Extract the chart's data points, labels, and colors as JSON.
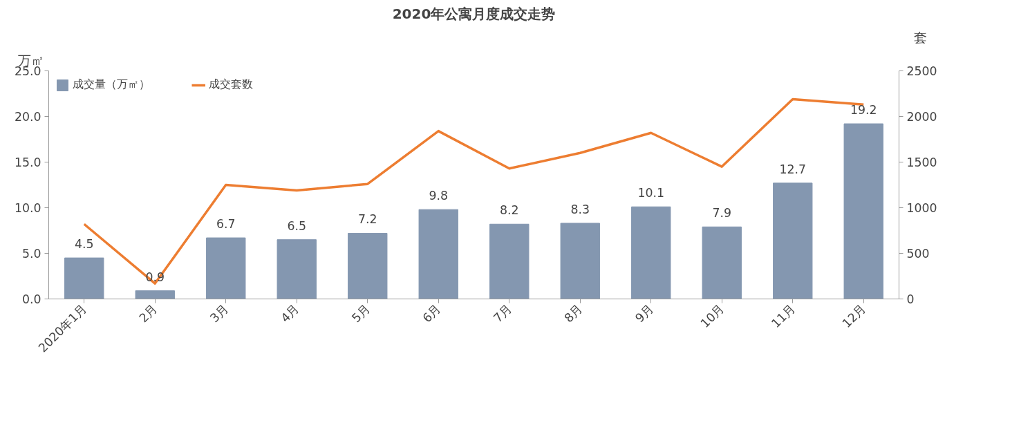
{
  "chart_data": {
    "type": "bar",
    "title": "2020年公寓月度成交走势",
    "ylabel": "万㎡",
    "y2label": "套",
    "categories": [
      "2020年1月",
      "2月",
      "3月",
      "4月",
      "5月",
      "6月",
      "7月",
      "8月",
      "9月",
      "10月",
      "11月",
      "12月"
    ],
    "series": [
      {
        "name": "成交量（万㎡）",
        "color": "#8497b0",
        "values": [
          4.5,
          0.9,
          6.7,
          6.5,
          7.2,
          9.8,
          8.2,
          8.3,
          10.1,
          7.9,
          12.7,
          19.2
        ],
        "value_labels": [
          "4.5",
          "0.9",
          "6.7",
          "6.5",
          "7.2",
          "9.8",
          "8.2",
          "8.3",
          "10.1",
          "7.9",
          "12.7",
          "19.2"
        ]
      },
      {
        "name": "成交套数",
        "type": "line",
        "axis": "y2",
        "color": "#ed7d31",
        "values": [
          820,
          170,
          1250,
          1190,
          1260,
          1840,
          1430,
          1600,
          1820,
          1450,
          2190,
          2130
        ]
      }
    ],
    "ylim": [
      0,
      25
    ],
    "yticks": [
      {
        "value": 0,
        "label": "0.0"
      },
      {
        "value": 5,
        "label": "5.0"
      },
      {
        "value": 10,
        "label": "10.0"
      },
      {
        "value": 15,
        "label": "15.0"
      },
      {
        "value": 20,
        "label": "20.0"
      },
      {
        "value": 25,
        "label": "25.0"
      }
    ],
    "y2lim": [
      0,
      2500
    ],
    "y2ticks": [
      0,
      500,
      1000,
      1500,
      2000,
      2500
    ],
    "grid": false,
    "legend": "top left",
    "marker": "none",
    "line_style": "solid"
  }
}
